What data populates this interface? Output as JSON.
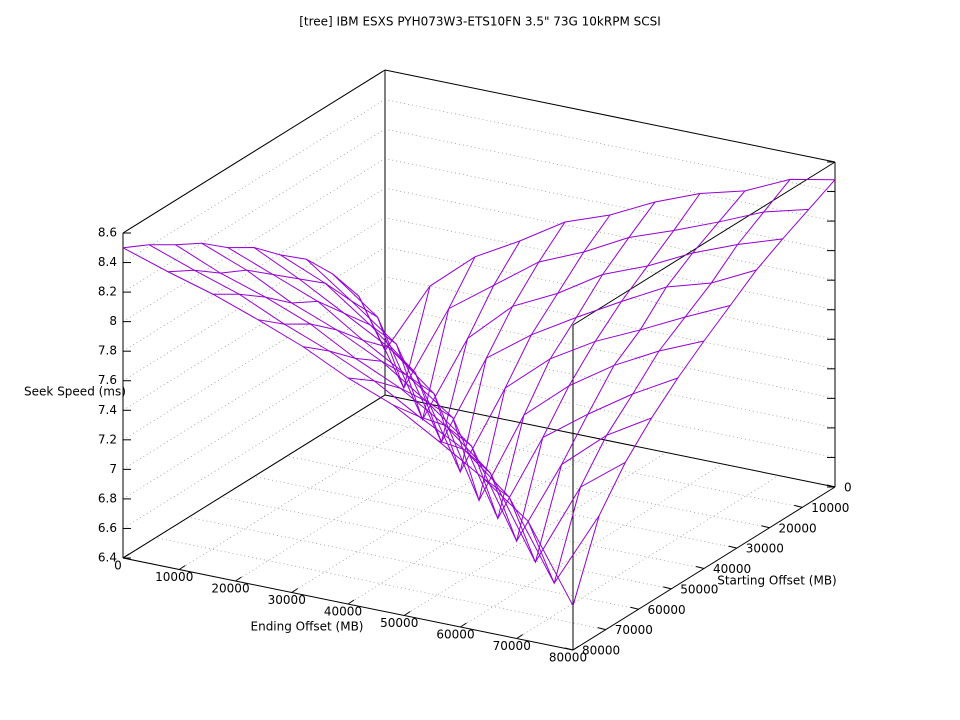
{
  "chart_data": {
    "type": "surface",
    "title": "[tree] IBM ESXS PYH073W3-ETS10FN 3.5\" 73G 10kRPM SCSI",
    "xlabel": "Ending Offset (MB)",
    "ylabel": "Starting Offset (MB)",
    "zlabel": "Seek Speed (ms)",
    "x": [
      0,
      8000,
      16000,
      24000,
      32000,
      40000,
      48000,
      56000,
      64000,
      72000,
      80000
    ],
    "y": [
      0,
      8000,
      16000,
      24000,
      32000,
      40000,
      48000,
      56000,
      64000,
      72000,
      80000
    ],
    "z": [
      [
        6.7,
        7.2,
        7.46,
        7.63,
        7.82,
        7.93,
        8.08,
        8.2,
        8.28,
        8.42,
        8.48
      ],
      [
        7.18,
        6.62,
        7.22,
        7.44,
        7.66,
        7.79,
        7.95,
        8.06,
        8.18,
        8.31,
        8.39
      ],
      [
        7.44,
        7.21,
        6.58,
        7.19,
        7.47,
        7.62,
        7.81,
        7.93,
        8.08,
        8.2,
        8.3
      ],
      [
        7.65,
        7.43,
        7.2,
        6.6,
        7.23,
        7.45,
        7.63,
        7.8,
        7.96,
        8.05,
        8.2
      ],
      [
        7.79,
        7.66,
        7.44,
        7.18,
        6.57,
        7.2,
        7.46,
        7.64,
        7.78,
        7.93,
        8.07
      ],
      [
        7.95,
        7.8,
        7.63,
        7.46,
        7.21,
        6.55,
        7.19,
        7.45,
        7.65,
        7.81,
        7.94
      ],
      [
        8.06,
        7.94,
        7.82,
        7.62,
        7.44,
        7.22,
        6.6,
        7.21,
        7.43,
        7.63,
        7.8
      ],
      [
        8.2,
        8.08,
        7.92,
        7.8,
        7.65,
        7.44,
        7.2,
        6.62,
        7.2,
        7.46,
        7.64
      ],
      [
        8.3,
        8.17,
        8.07,
        7.95,
        7.78,
        7.64,
        7.45,
        7.19,
        6.65,
        7.22,
        7.45
      ],
      [
        8.41,
        8.3,
        8.2,
        8.06,
        7.94,
        7.8,
        7.62,
        7.46,
        7.2,
        6.68,
        7.2
      ],
      [
        8.5,
        8.4,
        8.31,
        8.2,
        8.08,
        7.93,
        7.81,
        7.63,
        7.44,
        7.21,
        6.7
      ]
    ],
    "xlim": [
      0,
      80000
    ],
    "ylim": [
      0,
      80000
    ],
    "zlim": [
      6.4,
      8.6
    ],
    "xticks": [
      0,
      10000,
      20000,
      30000,
      40000,
      50000,
      60000,
      70000,
      80000
    ],
    "yticks": [
      0,
      10000,
      20000,
      30000,
      40000,
      50000,
      60000,
      70000,
      80000
    ],
    "zticks": [
      6.4,
      6.6,
      6.8,
      7,
      7.2,
      7.4,
      7.6,
      7.8,
      8,
      8.2,
      8.4,
      8.6
    ],
    "color": "#9400d3",
    "grid": true
  }
}
